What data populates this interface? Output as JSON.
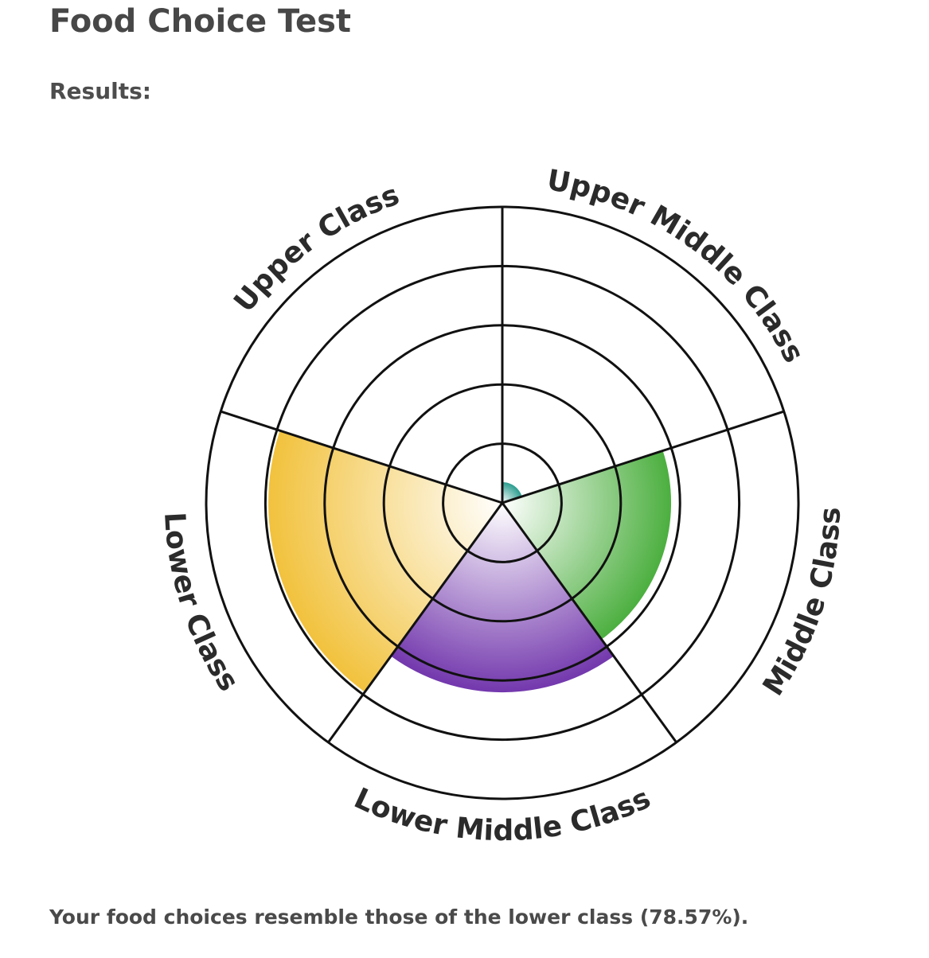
{
  "page": {
    "title": "Food Choice Test",
    "results_label": "Results:",
    "result_text": "Your food choices resemble those of the lower class (78.57%)."
  },
  "chart_data": {
    "type": "polar-area",
    "title": "",
    "scale": {
      "min": 0,
      "max": 100,
      "rings": 5
    },
    "categories": [
      "Upper Class",
      "Upper Middle Class",
      "Middle Class",
      "Lower Middle Class",
      "Lower Class"
    ],
    "values": [
      0,
      7,
      57,
      64,
      79
    ],
    "colors": {
      "Upper Class": "#cccccc",
      "Upper Middle Class": "#2a9d8f",
      "Middle Class": "#4caf3f",
      "Lower Middle Class": "#7338ad",
      "Lower Class": "#f2c23d"
    },
    "grid": true,
    "legend": "labels around rim"
  }
}
